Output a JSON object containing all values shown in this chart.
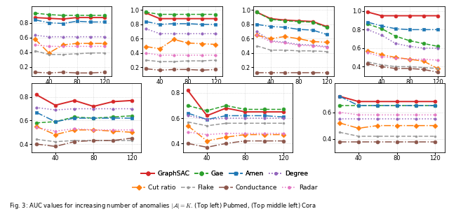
{
  "x": [
    20,
    40,
    60,
    80,
    100,
    120
  ],
  "subplots": [
    {
      "ylim": [
        0.08,
        1.02
      ],
      "yticks": [
        0.2,
        0.4,
        0.6,
        0.8
      ],
      "series": {
        "GraphSAC": [
          0.87,
          0.86,
          0.85,
          0.87,
          0.87,
          0.87
        ],
        "Gae": [
          0.93,
          0.91,
          0.9,
          0.9,
          0.9,
          0.9
        ],
        "Amen": [
          0.84,
          0.8,
          0.79,
          0.82,
          0.81,
          0.81
        ],
        "Degree": [
          0.63,
          0.61,
          0.61,
          0.61,
          0.61,
          0.61
        ],
        "Cut ratio": [
          0.58,
          0.39,
          0.5,
          0.52,
          0.52,
          0.52
        ],
        "Flake": [
          0.42,
          0.37,
          0.37,
          0.38,
          0.39,
          0.39
        ],
        "Conductance": [
          0.13,
          0.12,
          0.13,
          0.12,
          0.12,
          0.13
        ],
        "Radar": [
          0.5,
          0.48,
          0.48,
          0.48,
          0.48,
          0.48
        ]
      }
    },
    {
      "ylim": [
        0.08,
        1.05
      ],
      "yticks": [
        0.2,
        0.4,
        0.6,
        0.8,
        1.0
      ],
      "series": {
        "GraphSAC": [
          0.96,
          0.88,
          0.88,
          0.88,
          0.88,
          0.88
        ],
        "Gae": [
          0.97,
          0.94,
          0.94,
          0.94,
          0.94,
          0.94
        ],
        "Amen": [
          0.84,
          0.8,
          0.81,
          0.81,
          0.8,
          0.8
        ],
        "Degree": [
          0.74,
          0.67,
          0.67,
          0.67,
          0.67,
          0.67
        ],
        "Cut ratio": [
          0.49,
          0.46,
          0.59,
          0.54,
          0.53,
          0.52
        ],
        "Flake": [
          0.3,
          0.28,
          0.28,
          0.29,
          0.29,
          0.3
        ],
        "Conductance": [
          0.18,
          0.16,
          0.17,
          0.17,
          0.16,
          0.17
        ],
        "Radar": [
          0.4,
          0.37,
          0.37,
          0.37,
          0.37,
          0.37
        ]
      }
    },
    {
      "ylim": [
        0.08,
        1.05
      ],
      "yticks": [
        0.2,
        0.4,
        0.6,
        0.8,
        1.0
      ],
      "series": {
        "GraphSAC": [
          0.97,
          0.88,
          0.86,
          0.85,
          0.84,
          0.77
        ],
        "Gae": [
          0.97,
          0.87,
          0.85,
          0.84,
          0.83,
          0.76
        ],
        "Amen": [
          0.8,
          0.77,
          0.76,
          0.73,
          0.72,
          0.66
        ],
        "Degree": [
          0.7,
          0.57,
          0.55,
          0.52,
          0.51,
          0.49
        ],
        "Cut ratio": [
          0.65,
          0.6,
          0.63,
          0.6,
          0.56,
          0.55
        ],
        "Flake": [
          0.5,
          0.44,
          0.44,
          0.43,
          0.43,
          0.42
        ],
        "Conductance": [
          0.12,
          0.12,
          0.12,
          0.12,
          0.12,
          0.12
        ],
        "Radar": [
          0.65,
          0.56,
          0.54,
          0.51,
          0.5,
          0.48
        ]
      }
    },
    {
      "ylim": [
        0.3,
        1.05
      ],
      "yticks": [
        0.4,
        0.6,
        0.8,
        1.0
      ],
      "series": {
        "GraphSAC": [
          0.99,
          0.95,
          0.95,
          0.95,
          0.95,
          0.95
        ],
        "Gae": [
          0.86,
          0.81,
          0.73,
          0.68,
          0.65,
          0.62
        ],
        "Amen": [
          0.88,
          0.84,
          0.81,
          0.8,
          0.8,
          0.8
        ],
        "Degree": [
          0.8,
          0.74,
          0.65,
          0.62,
          0.6,
          0.6
        ],
        "Cut ratio": [
          0.57,
          0.53,
          0.5,
          0.48,
          0.46,
          0.38
        ],
        "Flake": [
          0.45,
          0.42,
          0.4,
          0.4,
          0.39,
          0.38
        ],
        "Conductance": [
          0.43,
          0.4,
          0.38,
          0.38,
          0.37,
          0.34
        ],
        "Radar": [
          0.55,
          0.51,
          0.49,
          0.48,
          0.48,
          0.47
        ]
      }
    },
    {
      "ylim": [
        0.33,
        0.92
      ],
      "yticks": [
        0.4,
        0.6,
        0.8
      ],
      "series": {
        "GraphSAC": [
          0.82,
          0.73,
          0.77,
          0.72,
          0.76,
          0.77
        ],
        "Gae": [
          0.58,
          0.59,
          0.63,
          0.62,
          0.63,
          0.64
        ],
        "Amen": [
          0.67,
          0.59,
          0.62,
          0.62,
          0.62,
          0.62
        ],
        "Degree": [
          0.71,
          0.69,
          0.7,
          0.7,
          0.7,
          0.7
        ],
        "Cut ratio": [
          0.55,
          0.48,
          0.52,
          0.52,
          0.51,
          0.5
        ],
        "Flake": [
          0.44,
          0.42,
          0.43,
          0.43,
          0.43,
          0.43
        ],
        "Conductance": [
          0.4,
          0.38,
          0.42,
          0.43,
          0.43,
          0.45
        ],
        "Radar": [
          0.54,
          0.51,
          0.53,
          0.52,
          0.52,
          0.52
        ]
      }
    },
    {
      "ylim": [
        0.33,
        0.88
      ],
      "yticks": [
        0.4,
        0.6,
        0.8
      ],
      "series": {
        "GraphSAC": [
          0.82,
          0.62,
          0.68,
          0.65,
          0.65,
          0.65
        ],
        "Gae": [
          0.7,
          0.66,
          0.7,
          0.67,
          0.67,
          0.67
        ],
        "Amen": [
          0.64,
          0.59,
          0.62,
          0.62,
          0.62,
          0.61
        ],
        "Degree": [
          0.62,
          0.59,
          0.6,
          0.6,
          0.6,
          0.6
        ],
        "Cut ratio": [
          0.54,
          0.42,
          0.45,
          0.47,
          0.47,
          0.47
        ],
        "Flake": [
          0.57,
          0.54,
          0.56,
          0.56,
          0.56,
          0.56
        ],
        "Conductance": [
          0.4,
          0.37,
          0.4,
          0.42,
          0.42,
          0.42
        ],
        "Radar": [
          0.49,
          0.47,
          0.48,
          0.48,
          0.48,
          0.48
        ]
      }
    },
    {
      "ylim": [
        0.3,
        0.82
      ],
      "yticks": [
        0.4,
        0.6
      ],
      "series": {
        "GraphSAC": [
          0.72,
          0.68,
          0.68,
          0.68,
          0.68,
          0.68
        ],
        "Gae": [
          0.65,
          0.65,
          0.65,
          0.65,
          0.65,
          0.65
        ],
        "Amen": [
          0.72,
          0.65,
          0.65,
          0.65,
          0.65,
          0.65
        ],
        "Degree": [
          0.55,
          0.55,
          0.55,
          0.55,
          0.55,
          0.55
        ],
        "Cut ratio": [
          0.52,
          0.48,
          0.5,
          0.5,
          0.5,
          0.5
        ],
        "Flake": [
          0.45,
          0.42,
          0.42,
          0.42,
          0.42,
          0.42
        ],
        "Conductance": [
          0.38,
          0.38,
          0.38,
          0.38,
          0.38,
          0.38
        ],
        "Radar": [
          0.6,
          0.58,
          0.58,
          0.58,
          0.58,
          0.58
        ]
      }
    }
  ],
  "series_styles": {
    "GraphSAC": {
      "color": "#d62728",
      "linestyle": "-",
      "marker": "o",
      "markersize": 3.5,
      "linewidth": 1.4
    },
    "Gae": {
      "color": "#2ca02c",
      "linestyle": "--",
      "marker": "o",
      "markersize": 3.5,
      "linewidth": 1.1
    },
    "Amen": {
      "color": "#1f77b4",
      "linestyle": "-.",
      "marker": "s",
      "markersize": 3.5,
      "linewidth": 1.1
    },
    "Degree": {
      "color": "#9467bd",
      "linestyle": ":",
      "marker": ".",
      "markersize": 5,
      "linewidth": 1.1
    },
    "Cut ratio": {
      "color": "#ff7f0e",
      "linestyle": "-.",
      "marker": "D",
      "markersize": 3.5,
      "linewidth": 1.1
    },
    "Flake": {
      "color": "#999999",
      "linestyle": "--",
      "marker": ".",
      "markersize": 4,
      "linewidth": 1.1
    },
    "Conductance": {
      "color": "#8c564b",
      "linestyle": "-.",
      "marker": "o",
      "markersize": 3.5,
      "linewidth": 1.1
    },
    "Radar": {
      "color": "#e377c2",
      "linestyle": ":",
      "marker": ".",
      "markersize": 5,
      "linewidth": 1.1
    }
  },
  "xticks": [
    40,
    80,
    120
  ],
  "xlim": [
    15,
    130
  ],
  "legend_row1": [
    "GraphSAC",
    "Gae",
    "Amen",
    "Degree"
  ],
  "legend_row2": [
    "Cut ratio",
    "Flake",
    "Conductance",
    "Radar"
  ],
  "caption": "Fig. 3: AUC values for increasing number of anomalies $|\\mathcal{A}| = K$. (Top left) Pubmed, (Top middle left) Cora"
}
